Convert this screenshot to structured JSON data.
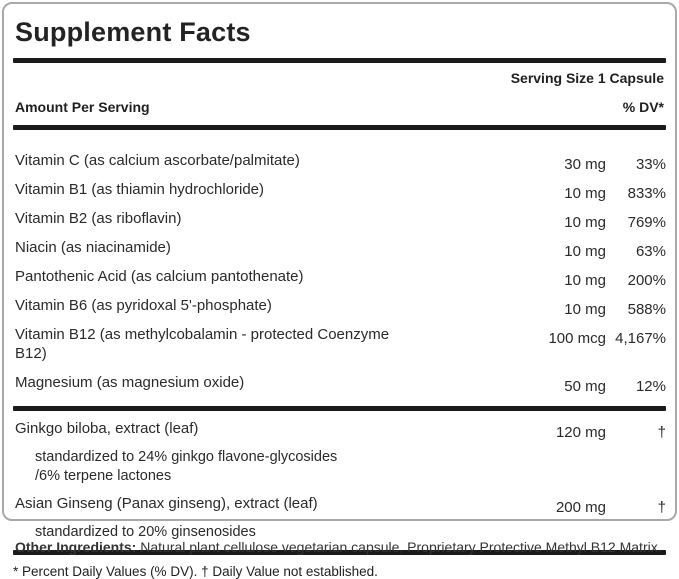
{
  "panel": {
    "title": "Supplement Facts",
    "serving_size": "Serving Size 1 Capsule",
    "amount_header": "Amount Per Serving",
    "dv_header": "% DV*",
    "rows": [
      {
        "name": "Vitamin C (as calcium ascorbate/palmitate)",
        "amount": "30 mg",
        "dv": "33%"
      },
      {
        "name": "Vitamin B1 (as thiamin hydrochloride)",
        "amount": "10 mg",
        "dv": "833%"
      },
      {
        "name": "Vitamin B2 (as riboflavin)",
        "amount": "10 mg",
        "dv": "769%"
      },
      {
        "name": "Niacin (as niacinamide)",
        "amount": "10 mg",
        "dv": "63%"
      },
      {
        "name": "Pantothenic Acid (as calcium pantothenate)",
        "amount": "10 mg",
        "dv": "200%"
      },
      {
        "name": "Vitamin B6 (as pyridoxal 5'-phosphate)",
        "amount": "10 mg",
        "dv": "588%"
      },
      {
        "name": "Vitamin B12 (as methylcobalamin - protected Coenzyme\nB12)",
        "amount": "100 mcg",
        "dv": "4,167%"
      },
      {
        "name": "Magnesium (as magnesium oxide)",
        "amount": "50 mg",
        "dv": "12%"
      }
    ],
    "botanicals": [
      {
        "name": "Ginkgo biloba, extract (leaf)",
        "amount": "120 mg",
        "dv": "†",
        "sub": "standardized to 24% ginkgo flavone-glycosides\n/6% terpene lactones"
      },
      {
        "name": "Asian Ginseng (Panax ginseng), extract (leaf)",
        "amount": "200 mg",
        "dv": "†",
        "sub": "standardized to 20% ginsenosides"
      }
    ],
    "footnote": "* Percent Daily Values (% DV). † Daily Value not established."
  },
  "other_ingredients": {
    "label": "Other Ingredients:",
    "text": " Natural plant cellulose vegetarian capsule, Proprietary Protective Methyl B12 Matrix."
  },
  "colors": {
    "rule": "#1b1b1b",
    "panel_border": "#a9a9a9",
    "text": "#2a2a2a"
  }
}
